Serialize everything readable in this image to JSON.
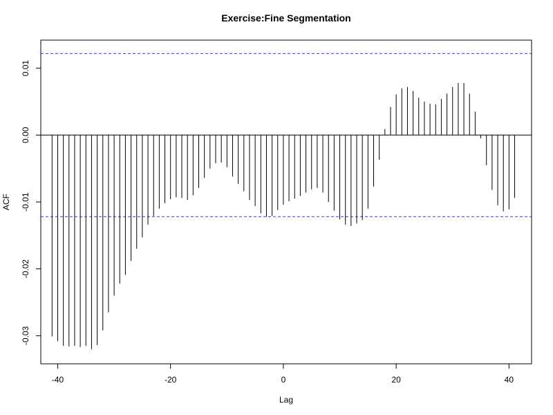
{
  "chart_data": {
    "type": "bar",
    "title": "Exercise:Fine Segmentation",
    "xlabel": "Lag",
    "ylabel": "ACF",
    "xlim": [
      -43,
      44
    ],
    "ylim": [
      -0.0342,
      0.0142
    ],
    "x_ticks": [
      {
        "value": -40,
        "label": "-40"
      },
      {
        "value": -20,
        "label": "-20"
      },
      {
        "value": 0,
        "label": "0"
      },
      {
        "value": 20,
        "label": "20"
      },
      {
        "value": 40,
        "label": "40"
      }
    ],
    "y_ticks": [
      {
        "value": 0.01,
        "label": "0.01"
      },
      {
        "value": 0.0,
        "label": "0.00"
      },
      {
        "value": -0.01,
        "label": "-0.01"
      },
      {
        "value": -0.02,
        "label": "-0.02"
      },
      {
        "value": -0.03,
        "label": "-0.03"
      }
    ],
    "confidence_bounds": [
      0.0122,
      -0.0122
    ],
    "lags": [
      -41,
      -40,
      -39,
      -38,
      -37,
      -36,
      -35,
      -34,
      -33,
      -32,
      -31,
      -30,
      -29,
      -28,
      -27,
      -26,
      -25,
      -24,
      -23,
      -22,
      -21,
      -20,
      -19,
      -18,
      -17,
      -16,
      -15,
      -14,
      -13,
      -12,
      -11,
      -10,
      -9,
      -8,
      -7,
      -6,
      -5,
      -4,
      -3,
      -2,
      -1,
      0,
      1,
      2,
      3,
      4,
      5,
      6,
      7,
      8,
      9,
      10,
      11,
      12,
      13,
      14,
      15,
      16,
      17,
      18,
      19,
      20,
      21,
      22,
      23,
      24,
      25,
      26,
      27,
      28,
      29,
      30,
      31,
      32,
      33,
      34,
      35,
      36,
      37,
      38,
      39,
      40,
      41
    ],
    "values": [
      -0.0301,
      -0.0308,
      -0.0315,
      -0.0316,
      -0.0315,
      -0.0317,
      -0.0315,
      -0.032,
      -0.0314,
      -0.0292,
      -0.0265,
      -0.024,
      -0.0222,
      -0.0209,
      -0.0188,
      -0.017,
      -0.0153,
      -0.0134,
      -0.0121,
      -0.011,
      -0.0102,
      -0.0096,
      -0.0093,
      -0.0094,
      -0.0097,
      -0.009,
      -0.0079,
      -0.0064,
      -0.005,
      -0.0042,
      -0.0041,
      -0.0048,
      -0.0062,
      -0.0073,
      -0.0084,
      -0.0097,
      -0.0106,
      -0.0117,
      -0.0122,
      -0.0121,
      -0.0112,
      -0.0104,
      -0.0099,
      -0.0095,
      -0.0091,
      -0.0086,
      -0.0081,
      -0.0079,
      -0.0086,
      -0.01,
      -0.0113,
      -0.0126,
      -0.0134,
      -0.0136,
      -0.0132,
      -0.0127,
      -0.011,
      -0.0077,
      -0.0037,
      0.0009,
      0.0042,
      0.0061,
      0.007,
      0.0072,
      0.0066,
      0.0056,
      0.005,
      0.0047,
      0.0046,
      0.0054,
      0.0062,
      0.0072,
      0.0078,
      0.0078,
      0.0062,
      0.0035,
      -0.0005,
      -0.0045,
      -0.0082,
      -0.0105,
      -0.0114,
      -0.0111,
      -0.0094
    ],
    "colors": {
      "bars": "#000000",
      "confidence": "#3333ff",
      "axes": "#000000"
    },
    "grid": false,
    "legend": "none"
  }
}
